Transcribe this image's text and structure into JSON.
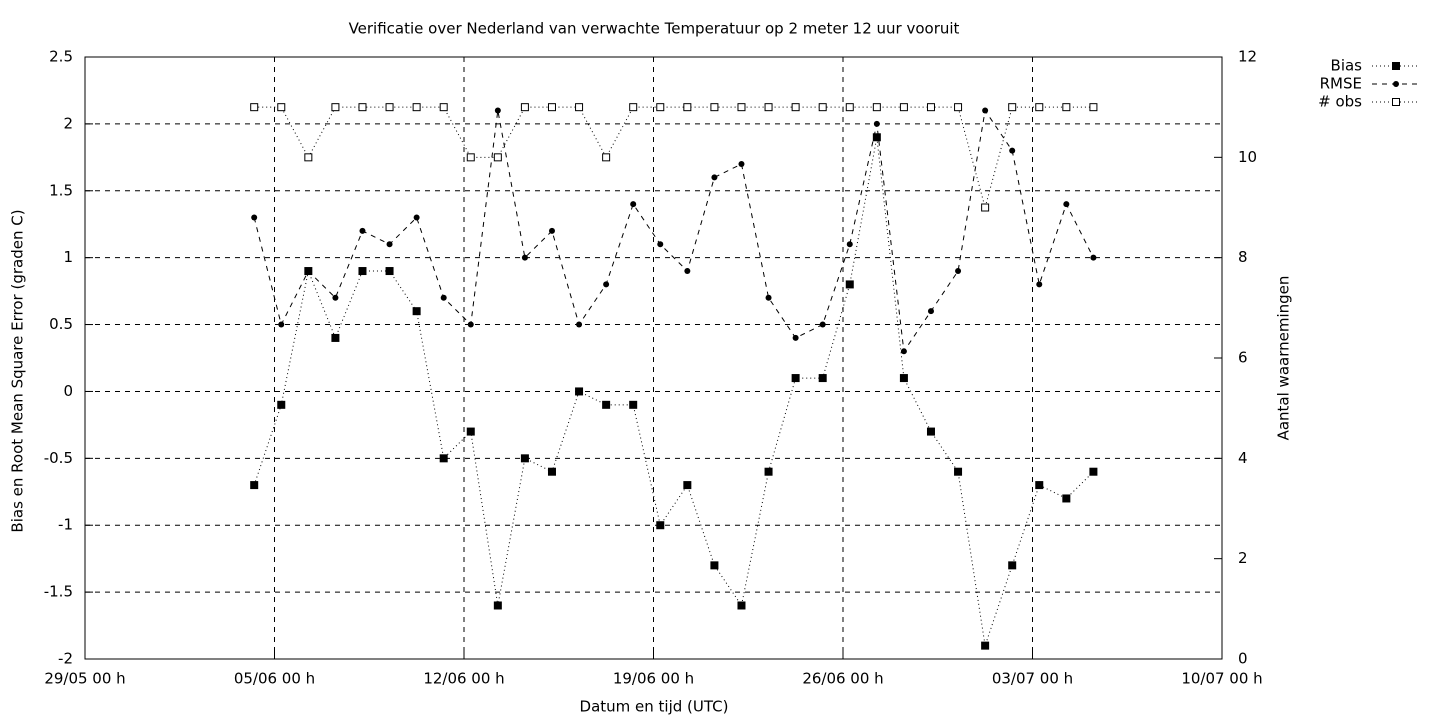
{
  "chart_data": {
    "type": "line",
    "title": "Verificatie over Nederland van verwachte Temperatuur op 2 meter 12 uur vooruit",
    "x_label": "Datum en tijd (UTC)",
    "y_label": "Bias en Root Mean Square Error (graden C)",
    "y2_label": "Aantal waarnemingen",
    "x": [
      6.25,
      7.25,
      8.25,
      9.25,
      10.25,
      11.25,
      12.25,
      13.25,
      14.25,
      15.25,
      16.25,
      17.25,
      18.25,
      19.25,
      20.25,
      21.25,
      22.25,
      23.25,
      24.25,
      25.25,
      26.25,
      27.25,
      28.25,
      29.25,
      30.25,
      31.25,
      32.25,
      33.25,
      34.25,
      35.25,
      36.25,
      37.25
    ],
    "xlim": [
      0,
      42
    ],
    "xticks": [
      {
        "value": 0,
        "label": "29/05 00 h"
      },
      {
        "value": 7,
        "label": "05/06 00 h"
      },
      {
        "value": 14,
        "label": "12/06 00 h"
      },
      {
        "value": 21,
        "label": "19/06 00 h"
      },
      {
        "value": 28,
        "label": "26/06 00 h"
      },
      {
        "value": 35,
        "label": "03/07 00 h"
      },
      {
        "value": 42,
        "label": "10/07 00 h"
      }
    ],
    "ylim": [
      -2,
      2.5
    ],
    "yticks": [
      -2,
      -1.5,
      -1,
      -0.5,
      0,
      0.5,
      1,
      1.5,
      2,
      2.5
    ],
    "y2lim": [
      0,
      12
    ],
    "y2ticks": [
      0,
      2,
      4,
      6,
      8,
      10,
      12
    ],
    "grid": true,
    "legend": "outside-top-right",
    "series": [
      {
        "name": "Bias",
        "color": "#000000",
        "dash": "dotted",
        "marker": "filled-square",
        "values": [
          -0.7,
          -0.1,
          0.9,
          0.4,
          0.9,
          0.9,
          0.6,
          -0.5,
          -0.3,
          -1.6,
          -0.5,
          -0.6,
          0,
          -0.1,
          -0.1,
          -1,
          -0.7,
          -1.3,
          -1.6,
          -0.6,
          0.1,
          0.1,
          0.8,
          1.9,
          0.1,
          -0.3,
          -0.6,
          -1.9,
          -1.3,
          -0.7,
          -0.8,
          -0.6
        ]
      },
      {
        "name": "RMSE",
        "color": "#000000",
        "dash": "dashed",
        "marker": "filled-circle",
        "values": [
          1.3,
          0.5,
          0.9,
          0.7,
          1.2,
          1.1,
          1.3,
          0.7,
          0.5,
          2.1,
          1,
          1.2,
          0.5,
          0.8,
          1.4,
          1.1,
          0.9,
          1.6,
          1.7,
          0.7,
          0.4,
          0.5,
          1.1,
          2,
          0.3,
          0.6,
          0.9,
          2.1,
          1.8,
          0.8,
          1.4,
          1
        ]
      },
      {
        "name": "# obs",
        "color": "#000000",
        "dash": "dotted",
        "marker": "open-square",
        "axis": "y2",
        "values": [
          11,
          11,
          10,
          11,
          11,
          11,
          11,
          11,
          10,
          10,
          11,
          11,
          11,
          10,
          11,
          11,
          11,
          11,
          11,
          11,
          11,
          11,
          11,
          11,
          11,
          11,
          11,
          9,
          11,
          11,
          11,
          11
        ]
      }
    ]
  }
}
